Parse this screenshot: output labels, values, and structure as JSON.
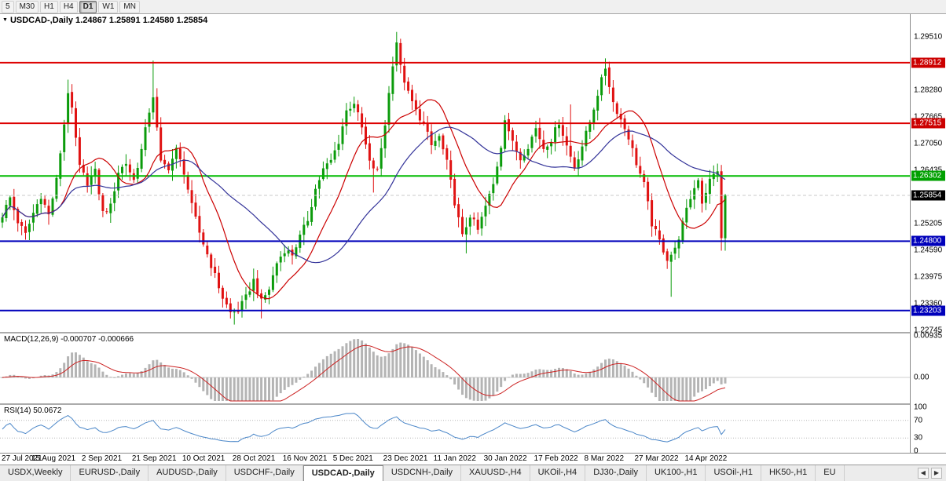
{
  "toolbar": {
    "timeframes": [
      {
        "label": "5",
        "active": false
      },
      {
        "label": "M30",
        "active": false
      },
      {
        "label": "H1",
        "active": false
      },
      {
        "label": "H4",
        "active": false
      },
      {
        "label": "D1",
        "active": true
      },
      {
        "label": "W1",
        "active": false
      },
      {
        "label": "MN",
        "active": false
      }
    ]
  },
  "main_chart": {
    "collapse_arrow": "▼",
    "title": "USDCAD-,Daily 1.24867 1.25891 1.24580 1.25854",
    "scale_top": 1.3003,
    "scale_bottom": 1.2271,
    "axis_ticks": [
      "1.29510",
      "1.28280",
      "1.27665",
      "1.27050",
      "1.26435",
      "1.25205",
      "1.24590",
      "1.23975",
      "1.23360",
      "1.22745"
    ],
    "badges": [
      {
        "value": "1.28912",
        "price": 1.28912,
        "color": "#cc0000"
      },
      {
        "value": "1.27515",
        "price": 1.27515,
        "color": "#cc0000"
      },
      {
        "value": "1.26302",
        "price": 1.26302,
        "color": "#00a000"
      },
      {
        "value": "1.25854",
        "price": 1.25854,
        "color": "#000000"
      },
      {
        "value": "1.24800",
        "price": 1.248,
        "color": "#0000bb"
      },
      {
        "value": "1.23203",
        "price": 1.23203,
        "color": "#0000bb"
      }
    ],
    "hlines": [
      {
        "price": 1.28912,
        "color": "#dd0000",
        "width": 2
      },
      {
        "price": 1.27515,
        "color": "#dd0000",
        "width": 2
      },
      {
        "price": 1.26302,
        "color": "#00bb00",
        "width": 2
      },
      {
        "price": 1.248,
        "color": "#0000bb",
        "width": 2
      },
      {
        "price": 1.23203,
        "color": "#0000bb",
        "width": 2
      }
    ],
    "current_price": 1.25854,
    "colors": {
      "up": "#0b9b0b",
      "down": "#e01212",
      "ma_fast": "#cc0000",
      "ma_slow": "#333399",
      "bid_line": "#c8c8c8"
    }
  },
  "chart_data": {
    "type": "candlestick",
    "symbol": "USDCAD-",
    "timeframe": "Daily",
    "bars": 188,
    "keypoints": [
      [
        0,
        1.254
      ],
      [
        2,
        1.258
      ],
      [
        4,
        1.2525
      ],
      [
        6,
        1.2495
      ],
      [
        8,
        1.2545
      ],
      [
        10,
        1.2585
      ],
      [
        12,
        1.254
      ],
      [
        14,
        1.262
      ],
      [
        16,
        1.275
      ],
      [
        17,
        1.2825
      ],
      [
        18,
        1.278
      ],
      [
        20,
        1.265
      ],
      [
        22,
        1.2615
      ],
      [
        24,
        1.264
      ],
      [
        26,
        1.2545
      ],
      [
        28,
        1.256
      ],
      [
        30,
        1.264
      ],
      [
        32,
        1.266
      ],
      [
        34,
        1.262
      ],
      [
        36,
        1.269
      ],
      [
        38,
        1.278
      ],
      [
        39,
        1.2815
      ],
      [
        41,
        1.266
      ],
      [
        43,
        1.265
      ],
      [
        45,
        1.269
      ],
      [
        47,
        1.264
      ],
      [
        49,
        1.256
      ],
      [
        51,
        1.25
      ],
      [
        53,
        1.245
      ],
      [
        55,
        1.24
      ],
      [
        57,
        1.235
      ],
      [
        59,
        1.2315
      ],
      [
        61,
        1.232
      ],
      [
        63,
        1.235
      ],
      [
        65,
        1.239
      ],
      [
        67,
        1.234
      ],
      [
        69,
        1.237
      ],
      [
        71,
        1.243
      ],
      [
        73,
        1.246
      ],
      [
        75,
        1.245
      ],
      [
        77,
        1.249
      ],
      [
        79,
        1.253
      ],
      [
        81,
        1.26
      ],
      [
        83,
        1.2645
      ],
      [
        85,
        1.2665
      ],
      [
        87,
        1.271
      ],
      [
        89,
        1.278
      ],
      [
        91,
        1.28
      ],
      [
        93,
        1.274
      ],
      [
        95,
        1.266
      ],
      [
        97,
        1.264
      ],
      [
        99,
        1.275
      ],
      [
        101,
        1.289
      ],
      [
        102,
        1.294
      ],
      [
        103,
        1.288
      ],
      [
        105,
        1.282
      ],
      [
        107,
        1.278
      ],
      [
        109,
        1.275
      ],
      [
        111,
        1.27
      ],
      [
        113,
        1.272
      ],
      [
        115,
        1.266
      ],
      [
        117,
        1.257
      ],
      [
        119,
        1.249
      ],
      [
        121,
        1.254
      ],
      [
        123,
        1.2505
      ],
      [
        125,
        1.256
      ],
      [
        127,
        1.261
      ],
      [
        129,
        1.27
      ],
      [
        130,
        1.2765
      ],
      [
        132,
        1.2705
      ],
      [
        134,
        1.267
      ],
      [
        136,
        1.27
      ],
      [
        138,
        1.274
      ],
      [
        140,
        1.2695
      ],
      [
        142,
        1.2715
      ],
      [
        144,
        1.2755
      ],
      [
        146,
        1.27
      ],
      [
        148,
        1.265
      ],
      [
        150,
        1.27
      ],
      [
        152,
        1.2755
      ],
      [
        154,
        1.282
      ],
      [
        156,
        1.288
      ],
      [
        158,
        1.28
      ],
      [
        160,
        1.276
      ],
      [
        162,
        1.272
      ],
      [
        164,
        1.266
      ],
      [
        166,
        1.261
      ],
      [
        168,
        1.252
      ],
      [
        170,
        1.248
      ],
      [
        172,
        1.244
      ],
      [
        174,
        1.246
      ],
      [
        176,
        1.252
      ],
      [
        178,
        1.258
      ],
      [
        180,
        1.2625
      ],
      [
        181,
        1.257
      ],
      [
        183,
        1.262
      ],
      [
        185,
        1.2645
      ],
      [
        186,
        1.2487
      ],
      [
        187,
        1.25854
      ]
    ],
    "wick_overrides": [
      {
        "d": 17,
        "h": 1.2852
      },
      {
        "d": 39,
        "h": 1.2896
      },
      {
        "d": 60,
        "l": 1.2288
      },
      {
        "d": 67,
        "l": 1.2302
      },
      {
        "d": 96,
        "l": 1.2592
      },
      {
        "d": 102,
        "h": 1.2962
      },
      {
        "d": 120,
        "l": 1.2452
      },
      {
        "d": 147,
        "h": 1.2795
      },
      {
        "d": 156,
        "h": 1.2901
      },
      {
        "d": 173,
        "l": 1.2352
      },
      {
        "d": 186,
        "l": 1.2458
      },
      {
        "d": 187,
        "h": 1.25891,
        "l": 1.2458
      }
    ],
    "last_bar": {
      "open": 1.24867,
      "high": 1.25891,
      "low": 1.2458,
      "close": 1.25854
    },
    "ma_fast_period": 13,
    "ma_slow_period": 34
  },
  "macd_panel": {
    "label": "MACD(12,26,9) -0.000707 -0.000666",
    "axis": [
      {
        "label": "0.00935",
        "value": 0.00935
      },
      {
        "label": "0.00",
        "value": 0
      }
    ],
    "fast": 12,
    "slow": 26,
    "signal": 9,
    "colors": {
      "histogram": "#b4b4b4",
      "signal": "#cc2222",
      "zero_line": "#cfcfcf"
    }
  },
  "rsi_panel": {
    "label": "RSI(14) 50.0672",
    "axis": [
      {
        "label": "100",
        "value": 100
      },
      {
        "label": "70",
        "value": 70
      },
      {
        "label": "30",
        "value": 30
      },
      {
        "label": "0",
        "value": 0
      }
    ],
    "period": 14,
    "levels": [
      70,
      30
    ],
    "color": "#4a86c8"
  },
  "timeline": [
    "27 Jul 2021",
    "15 Aug 2021",
    "2 Sep 2021",
    "21 Sep 2021",
    "10 Oct 2021",
    "28 Oct 2021",
    "16 Nov 2021",
    "5 Dec 2021",
    "23 Dec 2021",
    "11 Jan 2022",
    "30 Jan 2022",
    "17 Feb 2022",
    "8 Mar 2022",
    "27 Mar 2022",
    "14 Apr 2022"
  ],
  "tab_bar": {
    "tabs": [
      {
        "label": "USDX,Weekly",
        "active": false
      },
      {
        "label": "EURUSD-,Daily",
        "active": false
      },
      {
        "label": "AUDUSD-,Daily",
        "active": false
      },
      {
        "label": "USDCHF-,Daily",
        "active": false
      },
      {
        "label": "USDCAD-,Daily",
        "active": true
      },
      {
        "label": "USDCNH-,Daily",
        "active": false
      },
      {
        "label": "XAUUSD-,H4",
        "active": false
      },
      {
        "label": "UKOil-,H4",
        "active": false
      },
      {
        "label": "DJ30-,Daily",
        "active": false
      },
      {
        "label": "UK100-,H1",
        "active": false
      },
      {
        "label": "USOil-,H1",
        "active": false
      },
      {
        "label": "HK50-,H1",
        "active": false
      },
      {
        "label": "EU",
        "active": false
      }
    ],
    "scroll_left": "◀",
    "scroll_right": "▶"
  }
}
